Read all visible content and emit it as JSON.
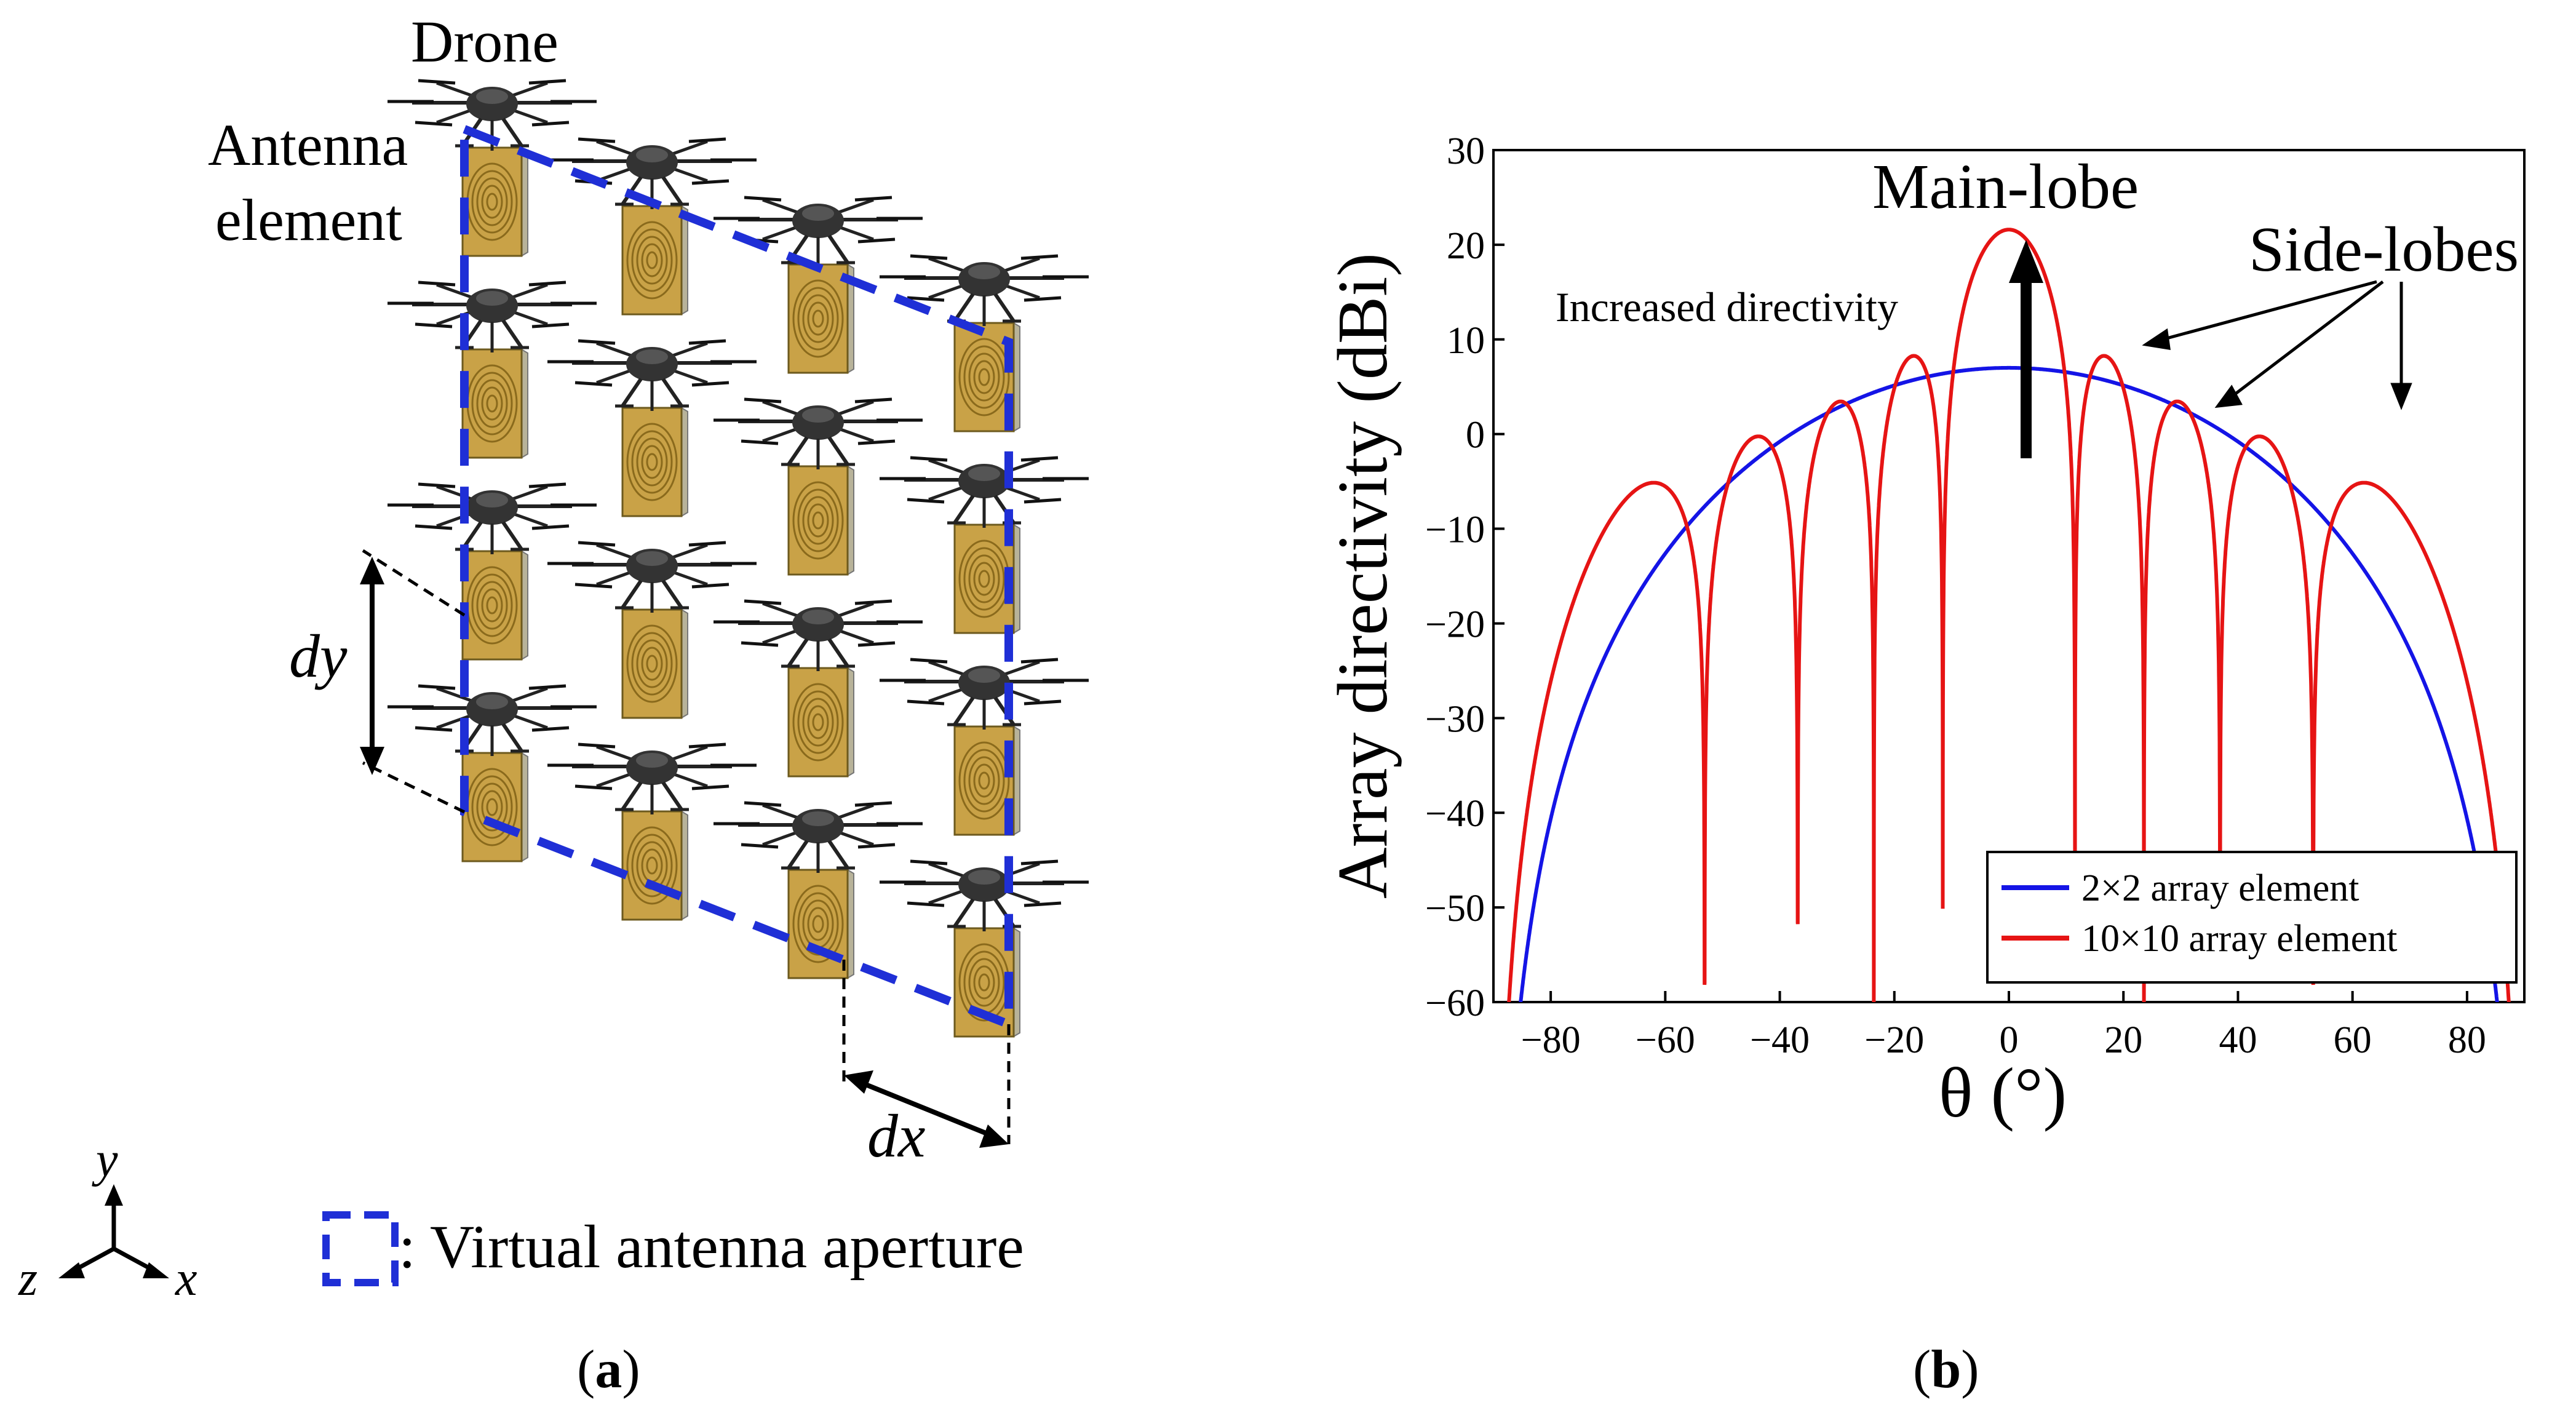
{
  "panel_a": {
    "caption_letter": "a",
    "labels": {
      "drone": "Drone",
      "antenna_line1": "Antenna",
      "antenna_line2": "element",
      "dy": "dy",
      "dx": "dx",
      "axis_y": "y",
      "axis_z": "z",
      "axis_x": "x",
      "legend_text": ": Virtual antenna aperture"
    },
    "colors": {
      "aperture": "#1f2fd6",
      "patch_face": "#c9a247",
      "patch_ring": "#8a6a1c",
      "patch_side": "#b8b39a",
      "drone": "#222222"
    },
    "array_layout": {
      "columns": 4,
      "rows": 4
    }
  },
  "panel_b": {
    "caption_letter": "b",
    "annotations": {
      "main_lobe": "Main-lobe",
      "side_lobes": "Side-lobes",
      "increased_directivity": "Increased directivity"
    }
  },
  "chart_data": {
    "type": "line",
    "title": "",
    "xlabel": "θ (°)",
    "ylabel": "Array directivity (dBi)",
    "xlim": [
      -90,
      90
    ],
    "ylim": [
      -60,
      30
    ],
    "xticks": [
      -80,
      -60,
      -40,
      -20,
      0,
      20,
      40,
      60,
      80
    ],
    "yticks": [
      -60,
      -50,
      -40,
      -30,
      -20,
      -10,
      0,
      10,
      20,
      30
    ],
    "legend_position": "bottom-right",
    "series": [
      {
        "name": "2×2 array element",
        "color": "#1414e6",
        "element_count": 2,
        "peak_db": 7
      },
      {
        "name": "10×10 array element",
        "color": "#e61414",
        "element_count": 10,
        "peak_db": 21.6
      }
    ]
  }
}
